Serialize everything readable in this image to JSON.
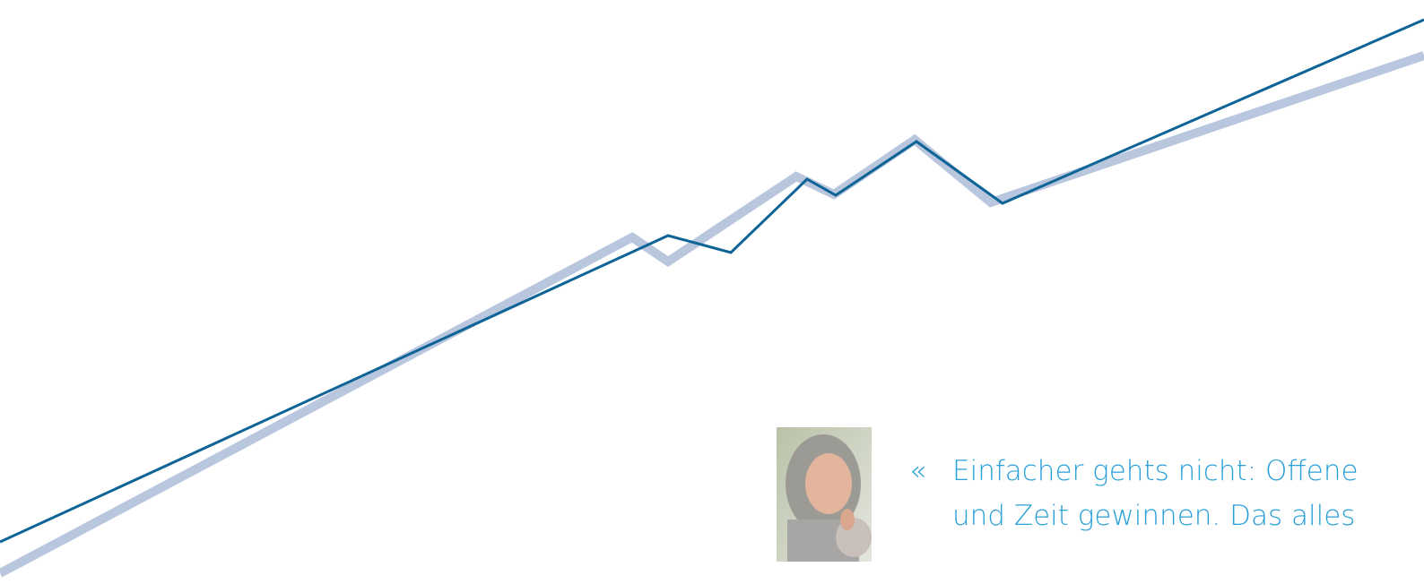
{
  "quote": {
    "mark": "«",
    "lines": [
      "Einfacher gehts nicht: Offene",
      "und Zeit gewinnen. Das alles"
    ]
  }
}
